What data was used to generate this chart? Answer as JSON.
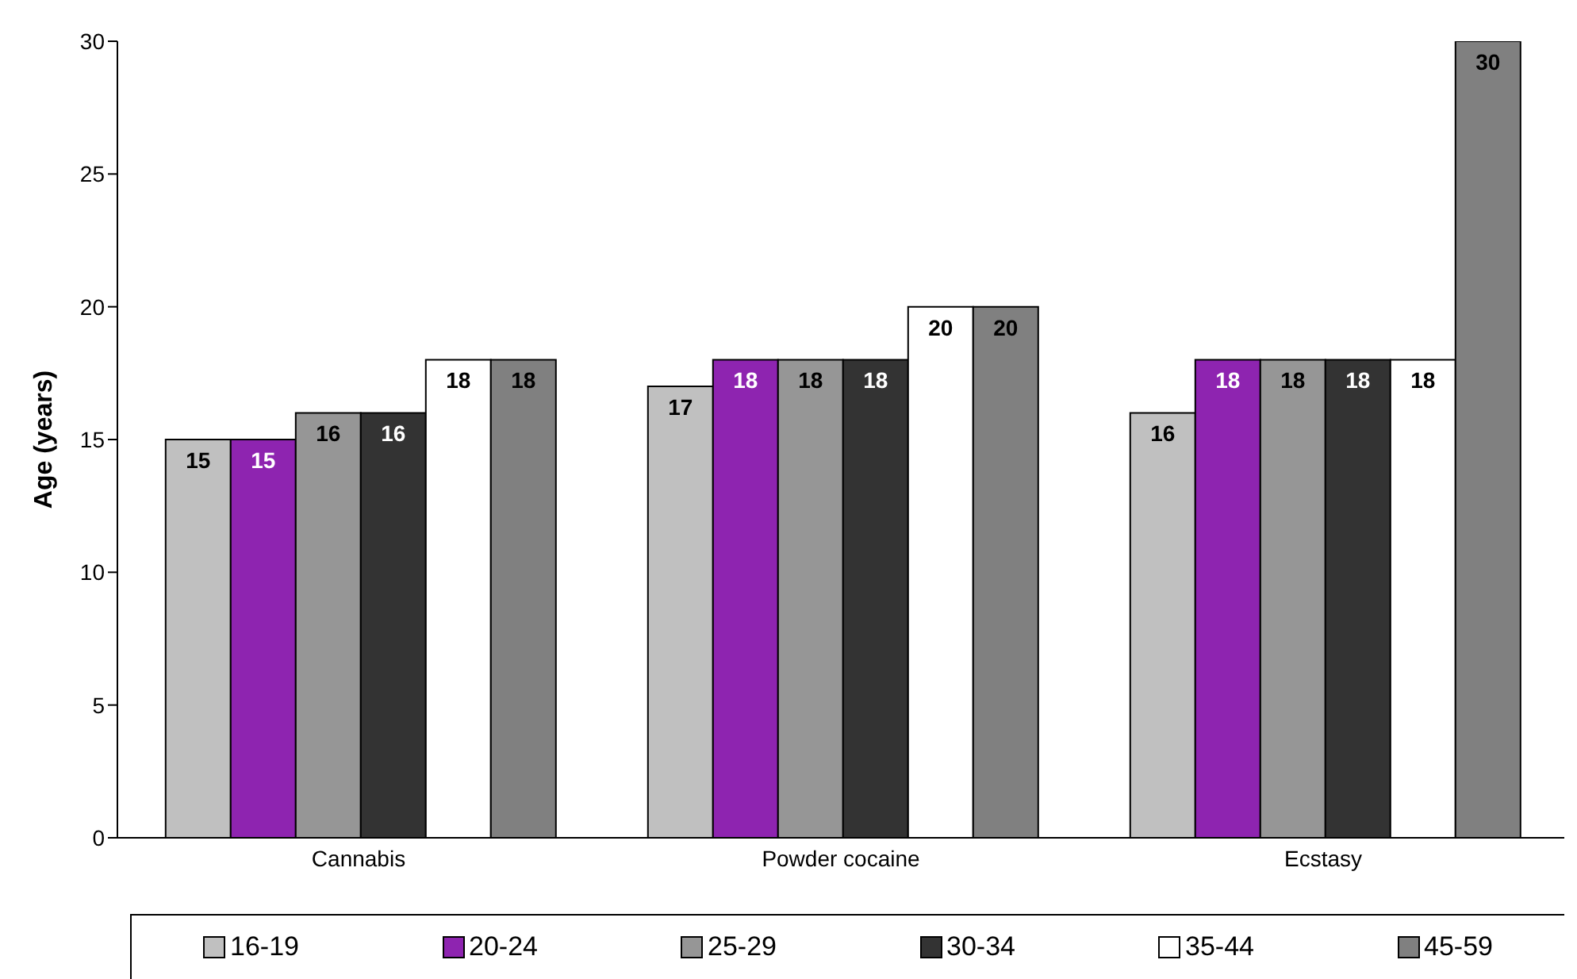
{
  "chart_data": {
    "type": "bar",
    "ylabel": "Age (years)",
    "categories": [
      "Cannabis",
      "Powder cocaine",
      "Ecstasy"
    ],
    "series": [
      {
        "name": "16-19",
        "color": "#c0c0c0",
        "values": [
          15,
          17,
          16
        ]
      },
      {
        "name": "20-24",
        "color": "#8e24b0",
        "values": [
          15,
          18,
          18
        ]
      },
      {
        "name": "25-29",
        "color": "#969696",
        "values": [
          16,
          18,
          18
        ]
      },
      {
        "name": "30-34",
        "color": "#333333",
        "values": [
          16,
          18,
          18
        ]
      },
      {
        "name": "35-44",
        "color": "#ffffff",
        "values": [
          18,
          20,
          18
        ]
      },
      {
        "name": "45-59",
        "color": "#808080",
        "values": [
          18,
          20,
          30
        ]
      }
    ],
    "ylim": [
      0,
      30
    ],
    "yticks": [
      0,
      5,
      10,
      15,
      20,
      25,
      30
    ],
    "data_labels": true,
    "legend": "bottom",
    "grid": false
  }
}
